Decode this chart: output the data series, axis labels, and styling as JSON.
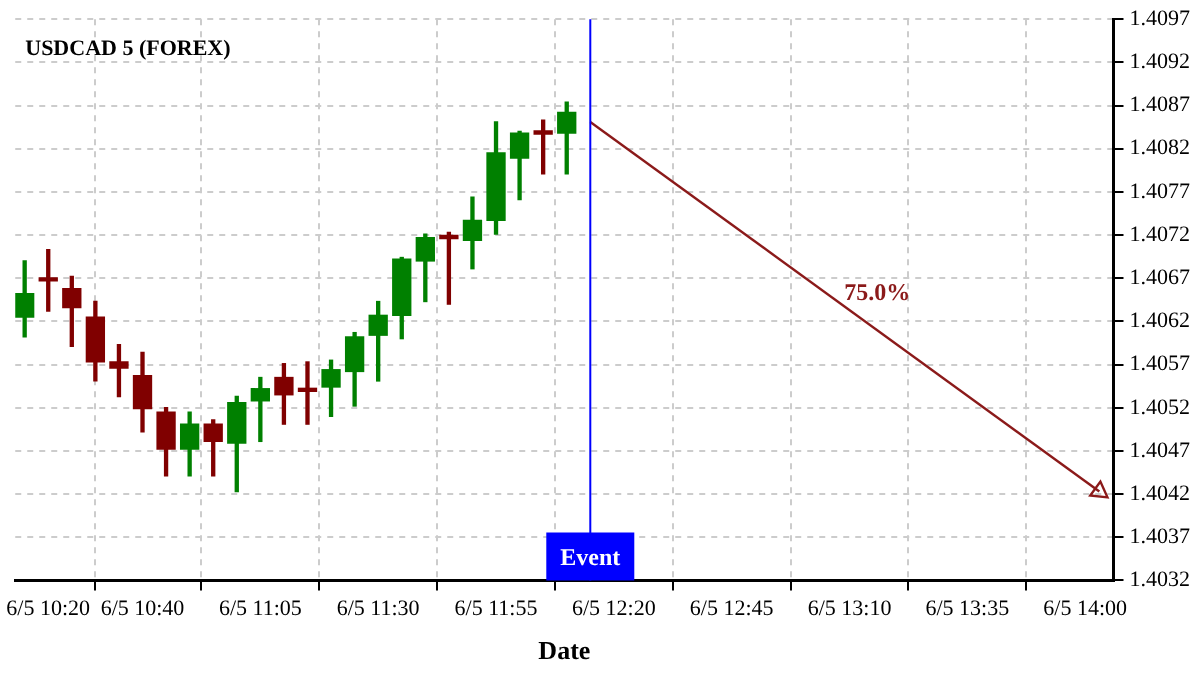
{
  "chart_data": {
    "type": "candlestick",
    "title": "USDCAD 5 (FOREX)",
    "xlabel": "Date",
    "x": [
      "--06-05T10:15",
      "--06-05T10:20",
      "--06-05T10:25",
      "--06-05T10:30",
      "--06-05T10:35",
      "--06-05T10:40",
      "--06-05T10:45",
      "--06-05T10:50",
      "--06-05T10:55",
      "--06-05T11:00",
      "--06-05T11:05",
      "--06-05T11:10",
      "--06-05T11:15",
      "--06-05T11:20",
      "--06-05T11:25",
      "--06-05T11:30",
      "--06-05T11:35",
      "--06-05T11:40",
      "--06-05T11:45",
      "--06-05T11:50",
      "--06-05T11:55",
      "--06-05T12:00",
      "--06-05T12:05",
      "--06-05T12:10"
    ],
    "ohlc": [
      [
        1.40625,
        1.4069,
        1.40602,
        1.40652
      ],
      [
        1.4067,
        1.40703,
        1.40632,
        1.40667
      ],
      [
        1.40658,
        1.40672,
        1.40591,
        1.40636
      ],
      [
        1.40625,
        1.40643,
        1.40551,
        1.40573
      ],
      [
        1.40573,
        1.40593,
        1.40533,
        1.40566
      ],
      [
        1.40557,
        1.40584,
        1.40492,
        1.40519
      ],
      [
        1.40515,
        1.4052,
        1.40441,
        1.40472
      ],
      [
        1.40472,
        1.40515,
        1.40441,
        1.40501
      ],
      [
        1.40501,
        1.40506,
        1.40441,
        1.40481
      ],
      [
        1.40479,
        1.40533,
        1.40423,
        1.40526
      ],
      [
        1.40528,
        1.40555,
        1.40481,
        1.40542
      ],
      [
        1.40555,
        1.40571,
        1.40501,
        1.40535
      ],
      [
        1.40541,
        1.40573,
        1.40501,
        1.40539
      ],
      [
        1.40544,
        1.40575,
        1.4051,
        1.40564
      ],
      [
        1.40562,
        1.40607,
        1.40522,
        1.40602
      ],
      [
        1.40604,
        1.40643,
        1.40551,
        1.40627
      ],
      [
        1.40627,
        1.40694,
        1.406,
        1.40692
      ],
      [
        1.4069,
        1.40721,
        1.40643,
        1.40717
      ],
      [
        1.40718,
        1.40723,
        1.4064,
        1.40716
      ],
      [
        1.40714,
        1.40764,
        1.40681,
        1.40737
      ],
      [
        1.40737,
        1.40851,
        1.40721,
        1.40815
      ],
      [
        1.40809,
        1.4084,
        1.40761,
        1.40838
      ],
      [
        1.40839,
        1.40853,
        1.40791,
        1.40837
      ],
      [
        1.40838,
        1.40874,
        1.40791,
        1.40862
      ]
    ],
    "colors": [
      "#008000",
      "#800000",
      "#800000",
      "#800000",
      "#800000",
      "#800000",
      "#800000",
      "#008000",
      "#800000",
      "#008000",
      "#008000",
      "#800000",
      "#800000",
      "#008000",
      "#008000",
      "#008000",
      "#008000",
      "#008000",
      "#800000",
      "#008000",
      "#008000",
      "#008000",
      "#800000",
      "#008000"
    ],
    "series": [
      {
        "type": "line",
        "color": "#8b1a1a",
        "x": [
          "--06-05T12:15",
          "--06-05T14:03"
        ],
        "values": [
          1.40851,
          1.40423
        ]
      }
    ],
    "ref_lines": [
      {
        "axis": "x",
        "value": "--06-05T12:15",
        "label": "Event",
        "color": "#0000ff"
      }
    ],
    "annotations": [
      "75.0%"
    ],
    "xlim": [
      "--06-05T10:13",
      "--06-05T14:06"
    ],
    "xticks": [
      {
        "value": "--06-05T10:20",
        "label": "6/5 10:20"
      },
      {
        "value": "--06-05T10:40",
        "label": "6/5 10:40"
      },
      {
        "value": "--06-05T11:05",
        "label": "6/5 11:05"
      },
      {
        "value": "--06-05T11:30",
        "label": "6/5 11:30"
      },
      {
        "value": "--06-05T11:55",
        "label": "6/5 11:55"
      },
      {
        "value": "--06-05T12:20",
        "label": "6/5 12:20"
      },
      {
        "value": "--06-05T12:45",
        "label": "6/5 12:45"
      },
      {
        "value": "--06-05T13:10",
        "label": "6/5 13:10"
      },
      {
        "value": "--06-05T13:35",
        "label": "6/5 13:35"
      },
      {
        "value": "--06-05T14:00",
        "label": "6/5 14:00"
      }
    ],
    "ylim": [
      1.4032,
      1.4097
    ],
    "yticks": [
      1.4032,
      1.4037,
      1.4042,
      1.4047,
      1.4052,
      1.4057,
      1.4062,
      1.4067,
      1.4072,
      1.4077,
      1.4082,
      1.4087,
      1.4092,
      1.4097
    ],
    "grid": true,
    "legend": false
  }
}
